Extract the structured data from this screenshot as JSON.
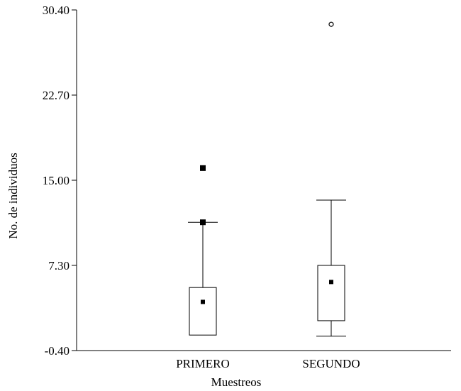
{
  "chart_data": {
    "type": "boxplot",
    "title": "",
    "xlabel": "Muestreos",
    "ylabel": "No. de individuos",
    "ylim": [
      -0.4,
      30.4
    ],
    "yticks": [
      "-0.40",
      "7.30",
      "15.00",
      "22.70",
      "30.40"
    ],
    "ytick_values": [
      -0.4,
      7.3,
      15.0,
      22.7,
      30.4
    ],
    "categories": [
      "PRIMERO",
      "SEGUNDO"
    ],
    "grid": false,
    "boxes": [
      {
        "category": "PRIMERO",
        "whisker_low": 1.0,
        "q1": 1.0,
        "median": 1.0,
        "q3": 5.3,
        "whisker_high": 11.2,
        "mean": 4.0,
        "outliers": [],
        "extremes": [
          16.1,
          11.2
        ]
      },
      {
        "category": "SEGUNDO",
        "whisker_low": 0.9,
        "q1": 2.3,
        "median": 2.3,
        "q3": 7.3,
        "whisker_high": 13.2,
        "mean": 5.8,
        "outliers": [
          29.1
        ],
        "extremes": []
      }
    ],
    "colors": {
      "box_fill": "#ffffff",
      "stroke": "#000000",
      "marker": "#000000"
    }
  }
}
